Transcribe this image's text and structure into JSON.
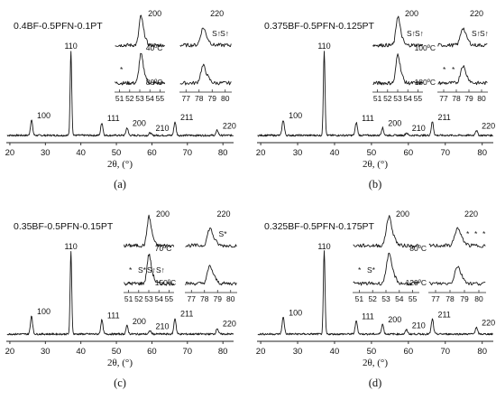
{
  "chart_data": [
    {
      "id": "a",
      "type": "line",
      "title": "0.4BF-0.5PFN-0.1PT",
      "xlabel": "2θ, (°)",
      "panel_label": "(a)",
      "xlim": [
        19,
        83
      ],
      "xticks": [
        20,
        30,
        40,
        50,
        60,
        70,
        80
      ],
      "x": [
        26.1,
        37.2,
        45.9,
        53.0,
        59.5,
        66.5,
        78.4
      ],
      "intensity": [
        18,
        100,
        15,
        9,
        3,
        16,
        6
      ],
      "peaks": [
        {
          "hkl": "100",
          "x": 26.1,
          "y": 18
        },
        {
          "hkl": "110",
          "x": 37.2,
          "y": 100
        },
        {
          "hkl": "111",
          "x": 45.9,
          "y": 15
        },
        {
          "hkl": "200",
          "x": 53.0,
          "y": 9
        },
        {
          "hkl": "210",
          "x": 59.5,
          "y": 3
        },
        {
          "hkl": "211",
          "x": 66.5,
          "y": 16
        },
        {
          "hkl": "220",
          "x": 78.4,
          "y": 6
        }
      ],
      "insets": [
        {
          "peak_label": "200",
          "xticks": [
            "51",
            "52",
            "53",
            "54",
            "55"
          ],
          "xlim": [
            50.5,
            55.5
          ],
          "center": 53.1,
          "temps": [
            "40ºC",
            "80ºC"
          ],
          "marks_top": [],
          "marks_bottom": [
            "*"
          ]
        },
        {
          "peak_label": "220",
          "xticks": [
            "77",
            "78",
            "79",
            "80"
          ],
          "xlim": [
            76.5,
            80.5
          ],
          "center": 78.3,
          "temps": [],
          "marks_top": [
            "S↑",
            "S↑"
          ],
          "marks_bottom": []
        }
      ]
    },
    {
      "id": "b",
      "type": "line",
      "title": "0.375BF-0.5PFN-0.125PT",
      "xlabel": "2θ, (°)",
      "panel_label": "(b)",
      "xlim": [
        19,
        83
      ],
      "xticks": [
        20,
        30,
        40,
        50,
        60,
        70,
        80
      ],
      "x": [
        26.1,
        37.2,
        45.9,
        53.0,
        59.5,
        66.5,
        78.4
      ],
      "intensity": [
        18,
        100,
        15,
        9,
        3,
        16,
        6
      ],
      "peaks": [
        {
          "hkl": "100",
          "x": 26.1,
          "y": 18
        },
        {
          "hkl": "110",
          "x": 37.2,
          "y": 100
        },
        {
          "hkl": "111",
          "x": 45.9,
          "y": 15
        },
        {
          "hkl": "200",
          "x": 53.0,
          "y": 9
        },
        {
          "hkl": "210",
          "x": 59.5,
          "y": 3
        },
        {
          "hkl": "211",
          "x": 66.5,
          "y": 16
        },
        {
          "hkl": "220",
          "x": 78.4,
          "y": 6
        }
      ],
      "insets": [
        {
          "peak_label": "200",
          "xticks": [
            "51",
            "52",
            "53",
            "54",
            "55"
          ],
          "xlim": [
            50.5,
            55.5
          ],
          "center": 53.0,
          "temps": [],
          "marks_top": [
            "S↑",
            "S↑"
          ],
          "marks_bottom": []
        },
        {
          "peak_label": "220",
          "xticks": [
            "77",
            "78",
            "79",
            "80"
          ],
          "xlim": [
            76.5,
            80.5
          ],
          "center": 78.5,
          "temps": [
            "100ºC",
            "180ºC"
          ],
          "marks_top": [
            "S↑",
            "S↑"
          ],
          "marks_bottom": [
            "*",
            "*"
          ]
        }
      ]
    },
    {
      "id": "c",
      "type": "line",
      "title": "0.35BF-0.5PFN-0.15PT",
      "xlabel": "2θ, (°)",
      "panel_label": "(c)",
      "xlim": [
        19,
        83
      ],
      "xticks": [
        20,
        30,
        40,
        50,
        60,
        70,
        80
      ],
      "x": [
        26.1,
        37.2,
        45.9,
        53.0,
        59.5,
        66.5,
        78.4
      ],
      "intensity": [
        22,
        100,
        17,
        10,
        4,
        19,
        7
      ],
      "peaks": [
        {
          "hkl": "100",
          "x": 26.1,
          "y": 22
        },
        {
          "hkl": "110",
          "x": 37.2,
          "y": 100
        },
        {
          "hkl": "111",
          "x": 45.9,
          "y": 17
        },
        {
          "hkl": "200",
          "x": 53.0,
          "y": 10
        },
        {
          "hkl": "210",
          "x": 59.5,
          "y": 4
        },
        {
          "hkl": "211",
          "x": 66.5,
          "y": 19
        },
        {
          "hkl": "220",
          "x": 78.4,
          "y": 7
        }
      ],
      "insets": [
        {
          "peak_label": "200",
          "xticks": [
            "51",
            "52",
            "53",
            "54",
            "55"
          ],
          "xlim": [
            50.5,
            55.5
          ],
          "center": 53.0,
          "temps": [
            "70ºC",
            "150ºC"
          ],
          "marks_top": [],
          "marks_bottom": [
            "*",
            "S*",
            "S↑",
            "S↑"
          ]
        },
        {
          "peak_label": "220",
          "xticks": [
            "77",
            "78",
            "79",
            "80"
          ],
          "xlim": [
            76.5,
            80.5
          ],
          "center": 78.4,
          "temps": [],
          "marks_top": [
            "S*"
          ],
          "marks_bottom": []
        }
      ]
    },
    {
      "id": "d",
      "type": "line",
      "title": "0.325BF-0.5PFN-0.175PT",
      "xlabel": "2θ, (°)",
      "panel_label": "(d)",
      "xlim": [
        19,
        83
      ],
      "xticks": [
        20,
        30,
        40,
        50,
        60,
        70,
        80
      ],
      "x": [
        26.1,
        37.2,
        45.9,
        53.0,
        59.5,
        66.5,
        78.4
      ],
      "intensity": [
        20,
        100,
        16,
        12,
        5,
        18,
        8
      ],
      "peaks": [
        {
          "hkl": "100",
          "x": 26.1,
          "y": 20
        },
        {
          "hkl": "110",
          "x": 37.2,
          "y": 100
        },
        {
          "hkl": "111",
          "x": 45.9,
          "y": 16
        },
        {
          "hkl": "200",
          "x": 53.0,
          "y": 12
        },
        {
          "hkl": "210",
          "x": 59.5,
          "y": 5
        },
        {
          "hkl": "211",
          "x": 66.5,
          "y": 18
        },
        {
          "hkl": "220",
          "x": 78.4,
          "y": 8
        }
      ],
      "insets": [
        {
          "peak_label": "200",
          "xticks": [
            "51",
            "52",
            "53",
            "54",
            "55"
          ],
          "xlim": [
            50.5,
            55.5
          ],
          "center": 53.2,
          "temps": [],
          "marks_top": [],
          "marks_bottom": [
            "*",
            "S*"
          ]
        },
        {
          "peak_label": "220",
          "xticks": [
            "77",
            "78",
            "79",
            "80"
          ],
          "xlim": [
            76.5,
            80.5
          ],
          "center": 78.5,
          "temps": [
            "80ºC",
            "120ºC"
          ],
          "marks_top": [
            "*",
            "*",
            "*"
          ],
          "marks_bottom": []
        }
      ]
    }
  ]
}
